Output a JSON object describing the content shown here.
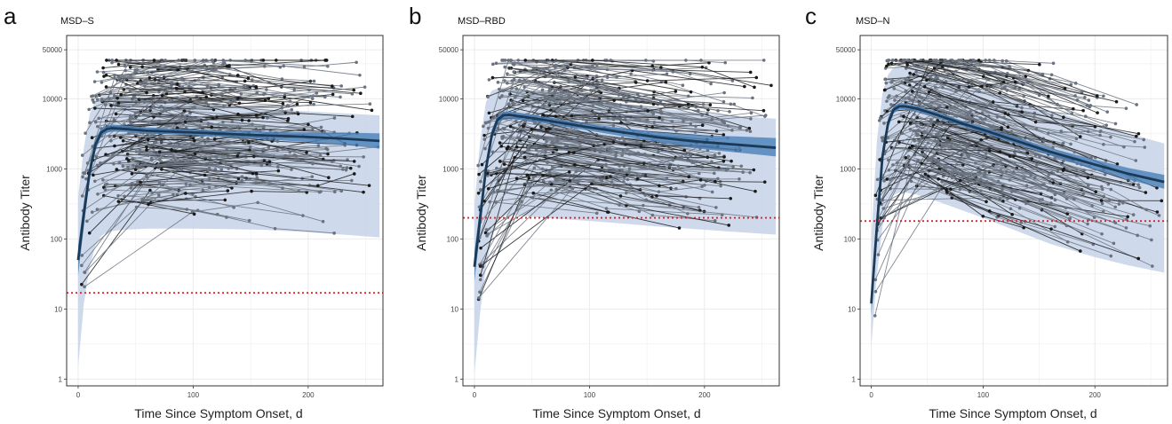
{
  "chart_data": [
    {
      "panel": "a",
      "title": "MSD–S",
      "type": "line",
      "xlabel": "Time Since Symptom Onset, d",
      "ylabel": "Antibody Titer",
      "xlim": [
        -10,
        265
      ],
      "ylim": [
        0.8,
        80000
      ],
      "y_scale": "log",
      "x_ticks": [
        0,
        100,
        200
      ],
      "x_tick_labels": [
        "0",
        "100",
        "200"
      ],
      "y_ticks": [
        1,
        10,
        100,
        1000,
        10000,
        50000
      ],
      "y_tick_labels": [
        "1",
        "10",
        "100",
        "1000",
        "10000",
        "50000"
      ],
      "threshold": 17,
      "fit_curve": {
        "x": [
          0,
          5,
          10,
          15,
          20,
          25,
          30,
          40,
          60,
          80,
          100,
          130,
          160,
          200,
          230,
          262
        ],
        "y": [
          50,
          230,
          900,
          2200,
          3300,
          3700,
          3800,
          3700,
          3500,
          3400,
          3300,
          3150,
          3000,
          2850,
          2700,
          2500
        ]
      },
      "ci_inner": {
        "x": [
          0,
          5,
          10,
          15,
          20,
          25,
          30,
          40,
          60,
          80,
          100,
          130,
          160,
          200,
          230,
          262
        ],
        "lower": [
          30,
          150,
          700,
          1800,
          2900,
          3300,
          3400,
          3350,
          3200,
          3100,
          3000,
          2850,
          2650,
          2400,
          2200,
          1950
        ],
        "upper": [
          80,
          340,
          1150,
          2700,
          3800,
          4200,
          4300,
          4150,
          3900,
          3750,
          3650,
          3500,
          3400,
          3350,
          3300,
          3200
        ]
      },
      "prediction_band": {
        "x": [
          0,
          5,
          10,
          15,
          20,
          25,
          30,
          40,
          60,
          80,
          100,
          130,
          160,
          200,
          230,
          262
        ],
        "lower": [
          1.5,
          12,
          40,
          80,
          110,
          125,
          130,
          135,
          140,
          140,
          140,
          138,
          135,
          125,
          115,
          105
        ],
        "upper": [
          400,
          2000,
          6000,
          9500,
          11000,
          11500,
          11500,
          11000,
          10000,
          9000,
          8500,
          7800,
          7200,
          6600,
          6200,
          5800
        ]
      }
    },
    {
      "panel": "b",
      "title": "MSD–RBD",
      "type": "line",
      "xlabel": "Time Since Symptom Onset, d",
      "ylabel": "Antibody Titer",
      "xlim": [
        -10,
        265
      ],
      "ylim": [
        0.8,
        80000
      ],
      "y_scale": "log",
      "x_ticks": [
        0,
        100,
        200
      ],
      "x_tick_labels": [
        "0",
        "100",
        "200"
      ],
      "y_ticks": [
        1,
        10,
        100,
        1000,
        10000,
        50000
      ],
      "y_tick_labels": [
        "1",
        "10",
        "100",
        "1000",
        "10000",
        "50000"
      ],
      "threshold": 200,
      "fit_curve": {
        "x": [
          0,
          5,
          10,
          15,
          20,
          25,
          30,
          40,
          60,
          80,
          100,
          130,
          160,
          200,
          230,
          262
        ],
        "y": [
          40,
          200,
          1000,
          3000,
          5000,
          5800,
          5900,
          5600,
          5000,
          4400,
          3900,
          3300,
          2800,
          2400,
          2200,
          2000
        ]
      },
      "ci_inner": {
        "x": [
          0,
          5,
          10,
          15,
          20,
          25,
          30,
          40,
          60,
          80,
          100,
          130,
          160,
          200,
          230,
          262
        ],
        "lower": [
          25,
          130,
          780,
          2500,
          4300,
          5100,
          5200,
          5000,
          4500,
          3950,
          3500,
          2900,
          2400,
          1900,
          1700,
          1500
        ],
        "upper": [
          65,
          300,
          1250,
          3600,
          5700,
          6500,
          6600,
          6300,
          5600,
          4900,
          4350,
          3800,
          3300,
          3000,
          2900,
          2750
        ]
      },
      "prediction_band": {
        "x": [
          0,
          5,
          10,
          15,
          20,
          25,
          30,
          40,
          60,
          80,
          100,
          130,
          160,
          200,
          230,
          262
        ],
        "lower": [
          1.2,
          9,
          40,
          100,
          180,
          210,
          220,
          215,
          200,
          190,
          180,
          165,
          150,
          135,
          125,
          115
        ],
        "upper": [
          300,
          2500,
          9000,
          13000,
          14000,
          14500,
          14500,
          14000,
          12500,
          11000,
          10000,
          8500,
          7300,
          6200,
          5600,
          5200
        ]
      }
    },
    {
      "panel": "c",
      "title": "MSD–N",
      "type": "line",
      "xlabel": "Time Since Symptom Onset, d",
      "ylabel": "Antibody Titer",
      "xlim": [
        -10,
        265
      ],
      "ylim": [
        0.8,
        80000
      ],
      "y_scale": "log",
      "x_ticks": [
        0,
        100,
        200
      ],
      "x_tick_labels": [
        "0",
        "100",
        "200"
      ],
      "y_ticks": [
        1,
        10,
        100,
        1000,
        10000,
        50000
      ],
      "y_tick_labels": [
        "1",
        "10",
        "100",
        "1000",
        "10000",
        "50000"
      ],
      "threshold": 180,
      "fit_curve": {
        "x": [
          0,
          5,
          10,
          15,
          20,
          25,
          30,
          40,
          60,
          80,
          100,
          130,
          160,
          200,
          230,
          262
        ],
        "y": [
          12,
          150,
          1500,
          4500,
          7000,
          7800,
          7800,
          7300,
          5800,
          4500,
          3600,
          2500,
          1750,
          1150,
          850,
          650
        ]
      },
      "ci_inner": {
        "x": [
          0,
          5,
          10,
          15,
          20,
          25,
          30,
          40,
          60,
          80,
          100,
          130,
          160,
          200,
          230,
          262
        ],
        "lower": [
          8,
          100,
          1150,
          3800,
          6200,
          7000,
          7050,
          6650,
          5300,
          4100,
          3250,
          2250,
          1550,
          980,
          700,
          520
        ],
        "upper": [
          20,
          230,
          1950,
          5300,
          7900,
          8700,
          8650,
          8000,
          6350,
          4950,
          3950,
          2800,
          1980,
          1350,
          1030,
          820
        ]
      },
      "prediction_band": {
        "x": [
          0,
          5,
          10,
          15,
          20,
          25,
          30,
          40,
          60,
          80,
          100,
          130,
          160,
          200,
          230,
          262
        ],
        "lower": [
          3,
          30,
          150,
          300,
          420,
          460,
          460,
          430,
          340,
          260,
          200,
          130,
          85,
          55,
          42,
          33
        ],
        "upper": [
          100,
          2500,
          12000,
          22000,
          28000,
          30000,
          30000,
          28000,
          22000,
          17000,
          13500,
          9800,
          6800,
          4400,
          3200,
          2300
        ]
      }
    }
  ],
  "colors": {
    "panel_border": "#333333",
    "grid": "#ebebeb",
    "band_outer": "#c5d3e8",
    "band_inner": "#4a7fb8",
    "fit_line": "#1b3a57",
    "threshold": "#e0202a",
    "trajectory_dark": "#1a1a1a",
    "trajectory_gray": "#6b7380"
  },
  "icons": []
}
